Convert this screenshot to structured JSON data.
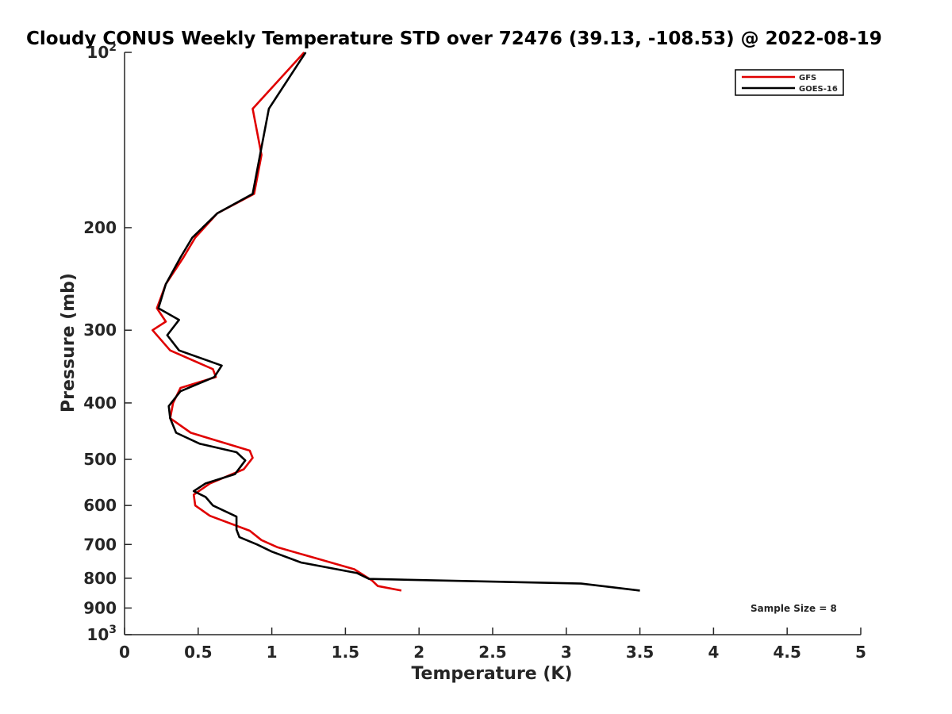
{
  "chart_data": {
    "type": "line",
    "title": "Cloudy CONUS Weekly Temperature STD over 72476 (39.13, -108.53) @ 2022-08-19",
    "xlabel": "Temperature (K)",
    "ylabel": "Pressure (mb)",
    "xlim": [
      0,
      5
    ],
    "ylim": [
      100,
      1000
    ],
    "y_scale": "log",
    "y_reversed": true,
    "grid": false,
    "legend_position": "top-right",
    "x_ticks": [
      "0",
      "0.5",
      "1",
      "1.5",
      "2",
      "2.5",
      "3",
      "3.5",
      "4",
      "4.5",
      "5"
    ],
    "y_ticks": [
      {
        "value": 100,
        "base": "10",
        "exp": "2"
      },
      {
        "value": 200,
        "label": "200"
      },
      {
        "value": 300,
        "label": "300"
      },
      {
        "value": 400,
        "label": "400"
      },
      {
        "value": 500,
        "label": "500"
      },
      {
        "value": 600,
        "label": "600"
      },
      {
        "value": 700,
        "label": "700"
      },
      {
        "value": 800,
        "label": "800"
      },
      {
        "value": 900,
        "label": "900"
      },
      {
        "value": 1000,
        "base": "10",
        "exp": "3"
      }
    ],
    "annotation": "Sample Size = 8",
    "series": [
      {
        "name": "GFS",
        "color": "#e00000",
        "points": [
          [
            1.22,
            100
          ],
          [
            0.87,
            125
          ],
          [
            0.93,
            150
          ],
          [
            0.88,
            175
          ],
          [
            0.63,
            189
          ],
          [
            0.48,
            208
          ],
          [
            0.4,
            225
          ],
          [
            0.28,
            250
          ],
          [
            0.22,
            275
          ],
          [
            0.28,
            290
          ],
          [
            0.19,
            300
          ],
          [
            0.31,
            325
          ],
          [
            0.6,
            350
          ],
          [
            0.62,
            361
          ],
          [
            0.38,
            377
          ],
          [
            0.33,
            400
          ],
          [
            0.31,
            425
          ],
          [
            0.45,
            450
          ],
          [
            0.85,
            483
          ],
          [
            0.87,
            497
          ],
          [
            0.81,
            520
          ],
          [
            0.58,
            550
          ],
          [
            0.47,
            575
          ],
          [
            0.48,
            600
          ],
          [
            0.58,
            625
          ],
          [
            0.85,
            663
          ],
          [
            0.93,
            688
          ],
          [
            1.04,
            708
          ],
          [
            1.33,
            743
          ],
          [
            1.56,
            772
          ],
          [
            1.68,
            807
          ],
          [
            1.72,
            825
          ],
          [
            1.88,
            840
          ]
        ]
      },
      {
        "name": "GOES-16",
        "color": "#000000",
        "points": [
          [
            1.23,
            100
          ],
          [
            0.98,
            125
          ],
          [
            0.92,
            150
          ],
          [
            0.87,
            175
          ],
          [
            0.63,
            189
          ],
          [
            0.46,
            208
          ],
          [
            0.38,
            225
          ],
          [
            0.28,
            250
          ],
          [
            0.23,
            275
          ],
          [
            0.37,
            288
          ],
          [
            0.29,
            306
          ],
          [
            0.37,
            325
          ],
          [
            0.66,
            345
          ],
          [
            0.61,
            361
          ],
          [
            0.38,
            382
          ],
          [
            0.3,
            405
          ],
          [
            0.31,
            425
          ],
          [
            0.35,
            450
          ],
          [
            0.51,
            470
          ],
          [
            0.76,
            486
          ],
          [
            0.82,
            502
          ],
          [
            0.75,
            530
          ],
          [
            0.55,
            550
          ],
          [
            0.47,
            567
          ],
          [
            0.55,
            580
          ],
          [
            0.6,
            600
          ],
          [
            0.76,
            627
          ],
          [
            0.76,
            660
          ],
          [
            0.78,
            680
          ],
          [
            0.9,
            700
          ],
          [
            1.0,
            720
          ],
          [
            1.2,
            752
          ],
          [
            1.58,
            784
          ],
          [
            1.66,
            802
          ],
          [
            3.1,
            817
          ],
          [
            3.5,
            840
          ]
        ]
      }
    ]
  }
}
